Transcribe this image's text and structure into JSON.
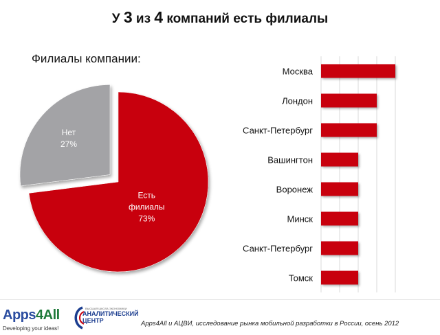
{
  "title": {
    "prefix": "У",
    "num1": "3",
    "middle": "из",
    "num2": "4",
    "suffix": "компаний есть филиалы"
  },
  "footer": {
    "apps_name_part1": "Apps",
    "apps_name_part2": "4All",
    "apps_slogan": "Developing your ideas!",
    "center_small": "ВЫСШАЯ ШКОЛА ЭКОНОМИКИ",
    "center_line1": "АНАЛИТИЧЕСКИЙ",
    "center_line2": "ЦЕНТР",
    "source": "Apps4All и АЦВИ, исследование рынка мобильной разработки в России, осень 2012"
  },
  "colors": {
    "red": "#c8000c",
    "gray": "#a3a3a6",
    "axis": "#d9d9d9"
  },
  "chart_data": [
    {
      "type": "pie",
      "title": "Филиалы компании:",
      "categories": [
        "Есть филиалы",
        "Нет"
      ],
      "values": [
        73,
        27
      ],
      "slice_labels": [
        [
          "Есть",
          "филиалы",
          "73%"
        ],
        [
          "Нет",
          "27%"
        ]
      ],
      "exploded": "Нет",
      "colors": [
        "#c8000c",
        "#a3a3a6"
      ]
    },
    {
      "type": "bar",
      "orientation": "horizontal",
      "categories": [
        "Москва",
        "Лондон",
        "Санкт-Петербург",
        "Вашингтон",
        "Воронеж",
        "Минск",
        "Санкт-Петербург",
        "Томск"
      ],
      "values": [
        4,
        3,
        3,
        2,
        2,
        2,
        2,
        2
      ],
      "xlim": [
        0,
        4
      ],
      "grid": true,
      "color": "#c8000c"
    }
  ]
}
